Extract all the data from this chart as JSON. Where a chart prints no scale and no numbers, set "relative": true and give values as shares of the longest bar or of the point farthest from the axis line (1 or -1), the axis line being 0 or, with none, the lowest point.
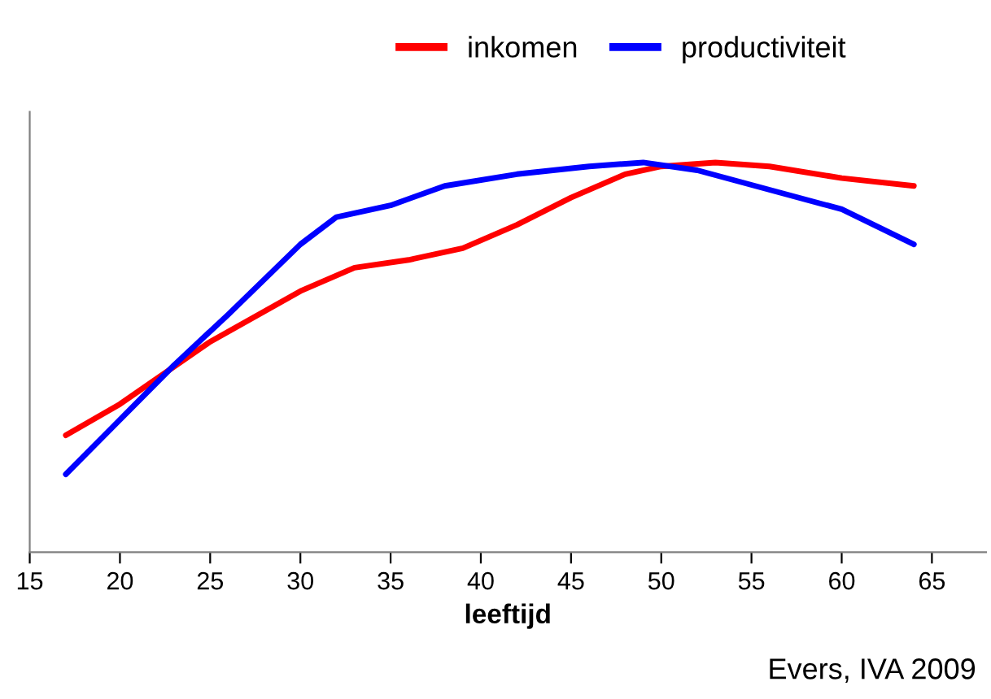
{
  "chart_data": {
    "type": "line",
    "relative": true,
    "xlabel": "leeftijd",
    "xlim": [
      15,
      68
    ],
    "xticks": [
      15,
      20,
      25,
      30,
      35,
      40,
      45,
      50,
      55,
      60,
      65
    ],
    "legend": "top",
    "grid": false,
    "marker": "none",
    "line_style": "solid",
    "annotations": [
      "Evers, IVA 2009"
    ],
    "series": [
      {
        "name": "inkomen",
        "color": "#ff0000",
        "x": [
          17,
          20,
          25,
          30,
          33,
          36,
          39,
          42,
          45,
          48,
          50,
          53,
          56,
          60,
          64
        ],
        "values": [
          0.3,
          0.38,
          0.54,
          0.67,
          0.73,
          0.75,
          0.78,
          0.84,
          0.91,
          0.97,
          0.99,
          1.0,
          0.99,
          0.96,
          0.94
        ]
      },
      {
        "name": "productiviteit",
        "color": "#0000ff",
        "x": [
          17,
          20,
          23,
          26,
          30,
          32,
          35,
          38,
          42,
          46,
          49,
          52,
          56,
          60,
          64
        ],
        "values": [
          0.2,
          0.34,
          0.48,
          0.61,
          0.79,
          0.86,
          0.89,
          0.94,
          0.97,
          0.99,
          1.0,
          0.98,
          0.93,
          0.88,
          0.79
        ]
      }
    ]
  }
}
